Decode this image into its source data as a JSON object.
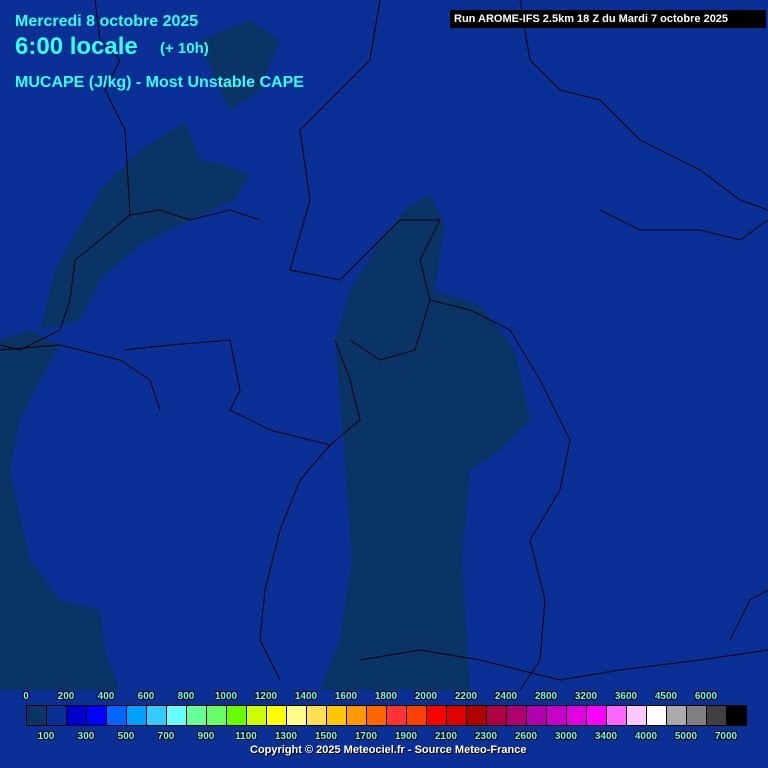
{
  "header": {
    "date": "Mercredi 8 octobre 2025",
    "time": "6:00 locale",
    "offset": "(+ 10h)",
    "parameter": "MUCAPE (J/kg) - Most Unstable CAPE",
    "run": "Run AROME-IFS 2.5km 18 Z du Mardi 7 octobre 2025"
  },
  "map_colors": {
    "background": "#0a3096",
    "low_cape": "#0a3366",
    "borders": "#000000"
  },
  "legend": {
    "top_labels": [
      "0",
      "200",
      "400",
      "600",
      "800",
      "1000",
      "1200",
      "1400",
      "1600",
      "1800",
      "2000",
      "2200",
      "2400",
      "2800",
      "3200",
      "3600",
      "4500",
      "6000"
    ],
    "bottom_labels": [
      "100",
      "300",
      "500",
      "700",
      "900",
      "1100",
      "1300",
      "1500",
      "1700",
      "1900",
      "2100",
      "2300",
      "2600",
      "3000",
      "3400",
      "4000",
      "5000",
      "7000"
    ],
    "colors": [
      "#0a3366",
      "#0a3096",
      "#0000cc",
      "#0000ff",
      "#0066ff",
      "#00a0ff",
      "#33ccff",
      "#66ffff",
      "#66ff99",
      "#66ff66",
      "#66ff00",
      "#ccff00",
      "#ffff00",
      "#ffff88",
      "#ffe050",
      "#ffc800",
      "#ff9900",
      "#ff6600",
      "#ff3333",
      "#ff4000",
      "#ff0000",
      "#e00000",
      "#b00000",
      "#b00040",
      "#b00070",
      "#b000b0",
      "#c800c8",
      "#e000e0",
      "#ff00ff",
      "#ff66ff",
      "#ffc8ff",
      "#ffffff",
      "#aaaaaa",
      "#808080",
      "#404040",
      "#000000"
    ]
  },
  "copyright": "Copyright © 2025 Meteociel.fr - Source Meteo-France"
}
